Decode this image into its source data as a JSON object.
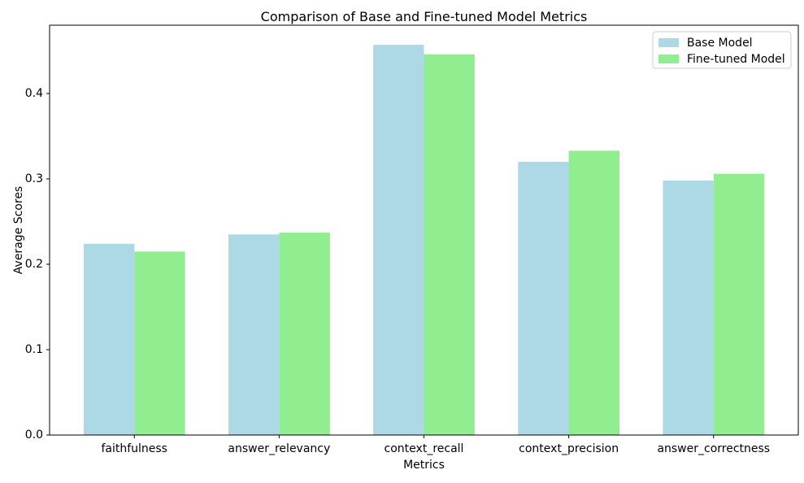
{
  "chart_data": {
    "type": "bar",
    "title": "Comparison of Base and Fine-tuned Model Metrics",
    "xlabel": "Metrics",
    "ylabel": "Average Scores",
    "categories": [
      "faithfulness",
      "answer_relevancy",
      "context_recall",
      "context_precision",
      "answer_correctness"
    ],
    "series": [
      {
        "name": "Base Model",
        "color": "#ADD8E6",
        "values": [
          0.224,
          0.235,
          0.457,
          0.32,
          0.298
        ]
      },
      {
        "name": "Fine-tuned Model",
        "color": "#90EE90",
        "values": [
          0.215,
          0.237,
          0.446,
          0.333,
          0.306
        ]
      }
    ],
    "bar_width": 0.35,
    "ylim": [
      0,
      0.48
    ],
    "xlim": [
      -0.585,
      4.585
    ],
    "yticks": [
      0.0,
      0.1,
      0.2,
      0.3,
      0.4
    ],
    "grid": false,
    "legend_position": "upper right",
    "background_color": "#ffffff",
    "text_color": "#000000"
  }
}
